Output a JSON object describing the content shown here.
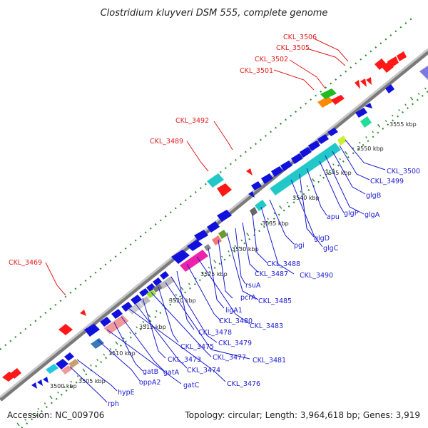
{
  "title": "Clostridium kluyveri DSM 555, complete genome",
  "accession": "Accession: NC_009706",
  "topology": "Topology: circular; Length: 3,964,618 bp; Genes: 3,919",
  "ticks": [
    "3500 kbp",
    "3505 kbp",
    "3510 kbp",
    "3515 kbp",
    "3520 kbp",
    "3525 kbp",
    "3530 kbp",
    "3535 kbp",
    "3540 kbp",
    "3545 kbp",
    "3550 kbp",
    "3555 kbp"
  ],
  "colors": {
    "forward_strand": "#ff1111",
    "reverse_strand": "#1111dd",
    "backbone": "#9a9a9a",
    "tick_marks": "#2e8b2e",
    "label_blue": "#1a1ad2",
    "label_red": "#e01b1b"
  },
  "red_labels": [
    "CKL_3506",
    "CKL_3505",
    "CKL_3502",
    "CKL_3501",
    "CKL_3492",
    "CKL_3489",
    "CKL_3469"
  ],
  "blue_labels": [
    "CKL_3500",
    "CKL_3499",
    "glgB",
    "glgA",
    "glgP",
    "apu",
    "glgD",
    "glgC",
    "pgi",
    "CKL_3490",
    "CKL_3488",
    "CKL_3487",
    "rsuA",
    "CKL_3485",
    "pcrA",
    "ligA1",
    "CKL_3483",
    "CKL_3480",
    "CKL_3478",
    "CKL_3479",
    "CKL_3481",
    "CKL_3475",
    "CKL_3477",
    "CKL_3473",
    "CKL_3474",
    "CKL_3476",
    "gatA",
    "gatB",
    "gatC",
    "oppA2",
    "hypE",
    "rph"
  ]
}
